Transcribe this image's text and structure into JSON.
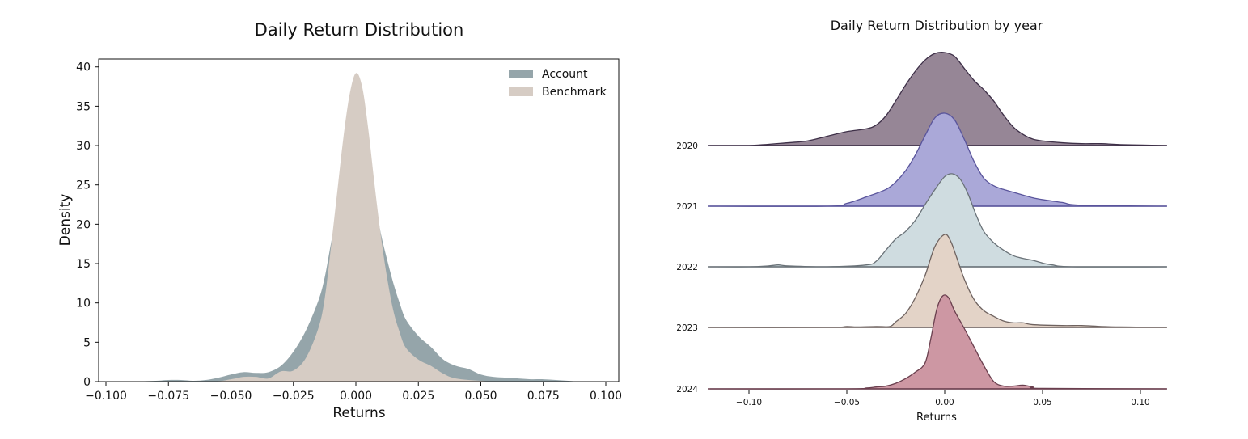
{
  "figure": {
    "left_title": "Daily Return Distribution",
    "right_title": "Daily Return Distribution by year"
  },
  "chart_data": [
    {
      "type": "area",
      "title": "Daily Return Distribution",
      "xlabel": "Returns",
      "ylabel": "Density",
      "xlim": [
        -0.1,
        0.1
      ],
      "ylim": [
        0,
        41
      ],
      "x_ticks": [
        -0.1,
        -0.075,
        -0.05,
        -0.025,
        0.0,
        0.025,
        0.05,
        0.075,
        0.1
      ],
      "x_tick_labels": [
        "−0.100",
        "−0.075",
        "−0.050",
        "−0.025",
        "0.000",
        "0.025",
        "0.050",
        "0.075",
        "0.100"
      ],
      "y_ticks": [
        0,
        5,
        10,
        15,
        20,
        25,
        30,
        35,
        40
      ],
      "y_tick_labels": [
        "0",
        "5",
        "10",
        "15",
        "20",
        "25",
        "30",
        "35",
        "40"
      ],
      "grid": false,
      "legend": {
        "position": "top-right",
        "items": [
          {
            "label": "Account",
            "color": "#95a5aa"
          },
          {
            "label": "Benchmark",
            "color": "#d6ccc4"
          }
        ]
      },
      "series": [
        {
          "name": "Account",
          "color": "#95a5aa",
          "points": [
            [
              -0.1,
              0.0
            ],
            [
              -0.09,
              0.0
            ],
            [
              -0.08,
              0.1
            ],
            [
              -0.075,
              0.2
            ],
            [
              -0.07,
              0.2
            ],
            [
              -0.065,
              0.1
            ],
            [
              -0.06,
              0.2
            ],
            [
              -0.055,
              0.5
            ],
            [
              -0.05,
              0.9
            ],
            [
              -0.045,
              1.2
            ],
            [
              -0.04,
              1.1
            ],
            [
              -0.035,
              1.2
            ],
            [
              -0.03,
              2.0
            ],
            [
              -0.025,
              3.8
            ],
            [
              -0.02,
              6.5
            ],
            [
              -0.015,
              10.3
            ],
            [
              -0.0125,
              13.2
            ],
            [
              -0.01,
              17.5
            ],
            [
              -0.0075,
              21.5
            ],
            [
              -0.005,
              25.0
            ],
            [
              -0.0025,
              28.0
            ],
            [
              0.0,
              29.5
            ],
            [
              0.0025,
              29.0
            ],
            [
              0.005,
              26.5
            ],
            [
              0.0075,
              23.0
            ],
            [
              0.01,
              18.8
            ],
            [
              0.0125,
              15.5
            ],
            [
              0.015,
              12.5
            ],
            [
              0.0175,
              10.0
            ],
            [
              0.02,
              7.9
            ],
            [
              0.025,
              5.8
            ],
            [
              0.03,
              4.4
            ],
            [
              0.035,
              2.8
            ],
            [
              0.04,
              2.0
            ],
            [
              0.045,
              1.6
            ],
            [
              0.05,
              0.9
            ],
            [
              0.055,
              0.6
            ],
            [
              0.06,
              0.5
            ],
            [
              0.065,
              0.4
            ],
            [
              0.07,
              0.3
            ],
            [
              0.075,
              0.3
            ],
            [
              0.08,
              0.2
            ],
            [
              0.085,
              0.1
            ],
            [
              0.09,
              0.0
            ],
            [
              0.1,
              0.0
            ]
          ]
        },
        {
          "name": "Benchmark",
          "color": "#d6ccc4",
          "points": [
            [
              -0.1,
              0.0
            ],
            [
              -0.06,
              0.0
            ],
            [
              -0.05,
              0.3
            ],
            [
              -0.045,
              0.6
            ],
            [
              -0.04,
              0.6
            ],
            [
              -0.035,
              0.4
            ],
            [
              -0.03,
              1.3
            ],
            [
              -0.025,
              1.4
            ],
            [
              -0.02,
              3.0
            ],
            [
              -0.015,
              6.8
            ],
            [
              -0.0125,
              10.5
            ],
            [
              -0.01,
              17.0
            ],
            [
              -0.0075,
              24.0
            ],
            [
              -0.005,
              31.0
            ],
            [
              -0.0025,
              36.5
            ],
            [
              0.0,
              39.2
            ],
            [
              0.0025,
              37.5
            ],
            [
              0.005,
              32.0
            ],
            [
              0.0075,
              25.0
            ],
            [
              0.01,
              18.5
            ],
            [
              0.0125,
              13.2
            ],
            [
              0.015,
              9.0
            ],
            [
              0.0175,
              6.3
            ],
            [
              0.02,
              4.3
            ],
            [
              0.025,
              2.8
            ],
            [
              0.03,
              2.0
            ],
            [
              0.035,
              1.0
            ],
            [
              0.04,
              0.4
            ],
            [
              0.05,
              0.1
            ],
            [
              0.06,
              0.0
            ],
            [
              0.1,
              0.0
            ]
          ]
        }
      ]
    },
    {
      "type": "area",
      "title": "Daily Return Distribution by year",
      "xlabel": "Returns",
      "xlim": [
        -0.12,
        0.113
      ],
      "x_ticks": [
        -0.1,
        -0.05,
        0.0,
        0.05,
        0.1
      ],
      "x_tick_labels": [
        "−0.10",
        "−0.05",
        "0.00",
        "0.05",
        "0.10"
      ],
      "grid": false,
      "series": [
        {
          "name": "2020",
          "fill": "#968696",
          "stroke": "#3e3048",
          "points": [
            [
              -0.12,
              0.0
            ],
            [
              -0.1,
              0.0
            ],
            [
              -0.08,
              0.03
            ],
            [
              -0.07,
              0.05
            ],
            [
              -0.06,
              0.1
            ],
            [
              -0.05,
              0.15
            ],
            [
              -0.04,
              0.18
            ],
            [
              -0.035,
              0.22
            ],
            [
              -0.03,
              0.32
            ],
            [
              -0.025,
              0.48
            ],
            [
              -0.02,
              0.65
            ],
            [
              -0.015,
              0.8
            ],
            [
              -0.01,
              0.92
            ],
            [
              -0.005,
              0.99
            ],
            [
              0.0,
              1.0
            ],
            [
              0.005,
              0.96
            ],
            [
              0.01,
              0.83
            ],
            [
              0.015,
              0.7
            ],
            [
              0.02,
              0.6
            ],
            [
              0.025,
              0.48
            ],
            [
              0.03,
              0.33
            ],
            [
              0.035,
              0.2
            ],
            [
              0.04,
              0.12
            ],
            [
              0.045,
              0.07
            ],
            [
              0.05,
              0.05
            ],
            [
              0.06,
              0.03
            ],
            [
              0.07,
              0.02
            ],
            [
              0.08,
              0.02
            ],
            [
              0.09,
              0.01
            ],
            [
              0.113,
              0.0
            ]
          ]
        },
        {
          "name": "2021",
          "fill": "#aaa8d8",
          "stroke": "#5a559c",
          "points": [
            [
              -0.12,
              0.0
            ],
            [
              -0.06,
              0.0
            ],
            [
              -0.05,
              0.03
            ],
            [
              -0.04,
              0.1
            ],
            [
              -0.03,
              0.18
            ],
            [
              -0.025,
              0.26
            ],
            [
              -0.02,
              0.38
            ],
            [
              -0.015,
              0.55
            ],
            [
              -0.01,
              0.76
            ],
            [
              -0.005,
              0.95
            ],
            [
              0.0,
              1.0
            ],
            [
              0.005,
              0.93
            ],
            [
              0.01,
              0.72
            ],
            [
              0.015,
              0.48
            ],
            [
              0.02,
              0.3
            ],
            [
              0.025,
              0.22
            ],
            [
              0.03,
              0.18
            ],
            [
              0.035,
              0.15
            ],
            [
              0.04,
              0.12
            ],
            [
              0.045,
              0.09
            ],
            [
              0.05,
              0.07
            ],
            [
              0.06,
              0.04
            ],
            [
              0.07,
              0.01
            ],
            [
              0.113,
              0.0
            ]
          ]
        },
        {
          "name": "2022",
          "fill": "#cfdce0",
          "stroke": "#6a7278",
          "points": [
            [
              -0.12,
              0.0
            ],
            [
              -0.1,
              0.0
            ],
            [
              -0.09,
              0.01
            ],
            [
              -0.085,
              0.02
            ],
            [
              -0.08,
              0.01
            ],
            [
              -0.06,
              0.0
            ],
            [
              -0.04,
              0.02
            ],
            [
              -0.035,
              0.06
            ],
            [
              -0.03,
              0.18
            ],
            [
              -0.025,
              0.3
            ],
            [
              -0.02,
              0.38
            ],
            [
              -0.015,
              0.5
            ],
            [
              -0.01,
              0.67
            ],
            [
              -0.005,
              0.83
            ],
            [
              0.0,
              0.97
            ],
            [
              0.004,
              1.0
            ],
            [
              0.008,
              0.94
            ],
            [
              0.012,
              0.78
            ],
            [
              0.016,
              0.56
            ],
            [
              0.02,
              0.38
            ],
            [
              0.025,
              0.26
            ],
            [
              0.03,
              0.18
            ],
            [
              0.035,
              0.12
            ],
            [
              0.04,
              0.09
            ],
            [
              0.045,
              0.07
            ],
            [
              0.05,
              0.04
            ],
            [
              0.055,
              0.02
            ],
            [
              0.065,
              0.0
            ],
            [
              0.113,
              0.0
            ]
          ]
        },
        {
          "name": "2023",
          "fill": "#e3d3c7",
          "stroke": "#6f6360",
          "points": [
            [
              -0.12,
              0.0
            ],
            [
              -0.06,
              0.0
            ],
            [
              -0.05,
              0.01
            ],
            [
              -0.045,
              0.005
            ],
            [
              -0.035,
              0.01
            ],
            [
              -0.028,
              0.01
            ],
            [
              -0.025,
              0.06
            ],
            [
              -0.02,
              0.15
            ],
            [
              -0.015,
              0.32
            ],
            [
              -0.01,
              0.56
            ],
            [
              -0.005,
              0.87
            ],
            [
              0.0,
              1.0
            ],
            [
              0.003,
              0.93
            ],
            [
              0.006,
              0.76
            ],
            [
              0.01,
              0.52
            ],
            [
              0.015,
              0.3
            ],
            [
              0.02,
              0.18
            ],
            [
              0.025,
              0.12
            ],
            [
              0.03,
              0.07
            ],
            [
              0.035,
              0.05
            ],
            [
              0.04,
              0.05
            ],
            [
              0.045,
              0.03
            ],
            [
              0.06,
              0.02
            ],
            [
              0.07,
              0.02
            ],
            [
              0.08,
              0.01
            ],
            [
              0.09,
              0.005
            ],
            [
              0.113,
              0.0
            ]
          ]
        },
        {
          "name": "2024",
          "fill": "#cd97a3",
          "stroke": "#6a3f4e",
          "points": [
            [
              -0.12,
              0.0
            ],
            [
              -0.05,
              0.0
            ],
            [
              -0.04,
              0.01
            ],
            [
              -0.035,
              0.02
            ],
            [
              -0.03,
              0.03
            ],
            [
              -0.025,
              0.06
            ],
            [
              -0.02,
              0.11
            ],
            [
              -0.015,
              0.18
            ],
            [
              -0.01,
              0.28
            ],
            [
              -0.007,
              0.55
            ],
            [
              -0.004,
              0.86
            ],
            [
              -0.001,
              1.0
            ],
            [
              0.002,
              0.98
            ],
            [
              0.005,
              0.84
            ],
            [
              0.01,
              0.65
            ],
            [
              0.015,
              0.45
            ],
            [
              0.02,
              0.25
            ],
            [
              0.025,
              0.08
            ],
            [
              0.03,
              0.03
            ],
            [
              0.035,
              0.03
            ],
            [
              0.04,
              0.04
            ],
            [
              0.045,
              0.02
            ],
            [
              0.05,
              0.005
            ],
            [
              0.113,
              0.0
            ]
          ]
        }
      ]
    }
  ]
}
